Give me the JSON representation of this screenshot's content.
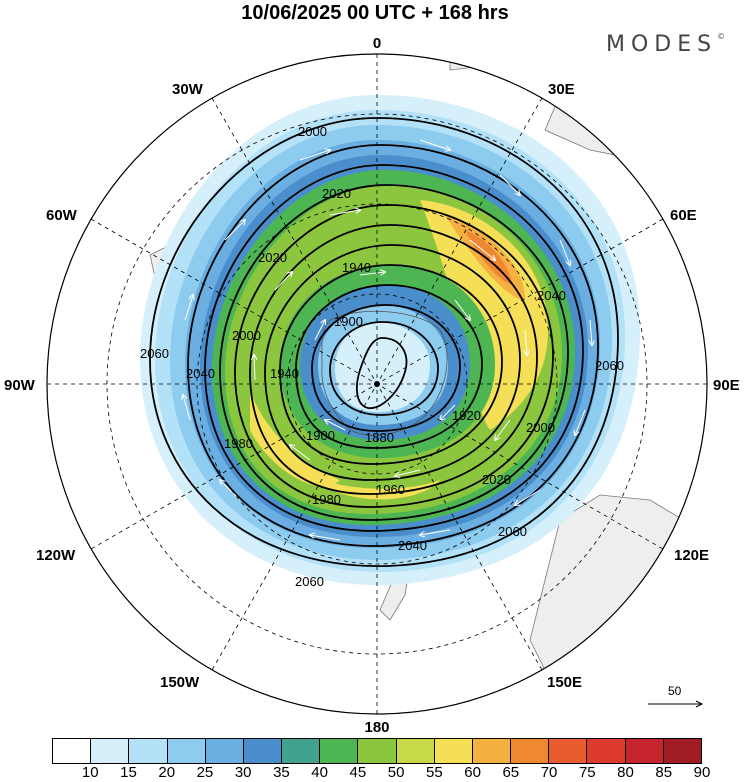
{
  "header": {
    "title": "10/06/2025  00 UTC  + 168 hrs",
    "brand": "MODES",
    "brand_mark": "©"
  },
  "map": {
    "projection": "polar-stereographic-south",
    "longitude_labels": {
      "top": "0",
      "bottom": "180",
      "left": "90W",
      "right": "90E",
      "upper_left": "30W",
      "upper_right": "30E",
      "left_upper": "60W",
      "right_upper": "60E",
      "left_lower": "120W",
      "right_lower": "120E",
      "lower_left": "150W",
      "lower_right": "150E"
    },
    "contour_labels": [
      "2060",
      "2040",
      "2020",
      "2000",
      "1980",
      "1960",
      "1940",
      "1920",
      "1900",
      "1880"
    ],
    "reference_vector": "50",
    "colors": {
      "land": "#eeeeee",
      "ocean": "#ffffff",
      "contour": "#000000",
      "stream": "#ffffff"
    }
  },
  "colorbar": {
    "ticks": [
      "10",
      "15",
      "20",
      "25",
      "30",
      "35",
      "40",
      "45",
      "50",
      "55",
      "60",
      "65",
      "70",
      "75",
      "80",
      "85",
      "90"
    ],
    "colors": [
      "#ffffff",
      "#d6f0fb",
      "#b3e1f7",
      "#8dcbef",
      "#6aaee2",
      "#4a8fcb",
      "#41a38e",
      "#4db552",
      "#8cc63f",
      "#c7d946",
      "#f4df57",
      "#f4b041",
      "#f08732",
      "#e85c2d",
      "#dc3a2c",
      "#c5242c",
      "#a01b22"
    ]
  }
}
